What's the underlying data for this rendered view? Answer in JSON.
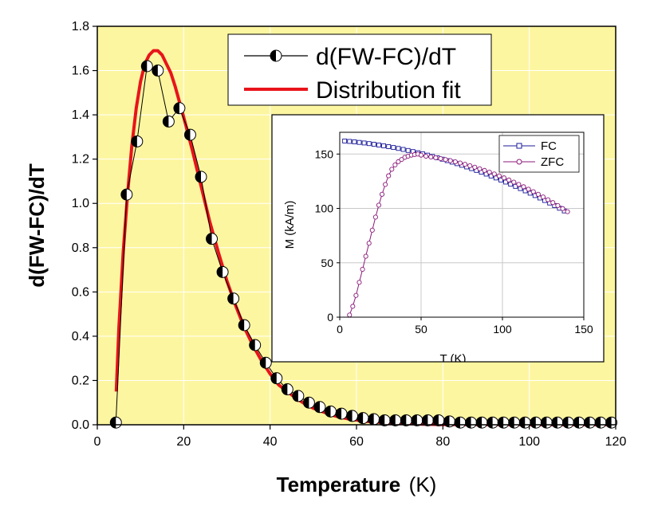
{
  "colors": {
    "plot_background": "#fdf6a0",
    "grid": "#ffffff",
    "fit_line": "#e8141b",
    "marker": "#000000",
    "fc_series": "#1b1b9a",
    "zfc_series": "#8a1a7a"
  },
  "chart_data": [
    {
      "type": "scatter",
      "ylabel": "d(FW-FC)/dT",
      "xlabel_bold": "Temperature",
      "xlabel_unit": "(K)",
      "xlim": [
        0,
        120
      ],
      "ylim": [
        0,
        1.8
      ],
      "xticks": [
        "0",
        "20",
        "40",
        "60",
        "80",
        "100",
        "120"
      ],
      "yticks": [
        "0.0",
        "0.2",
        "0.4",
        "0.6",
        "0.8",
        "1.0",
        "1.2",
        "1.4",
        "1.6",
        "1.8"
      ],
      "legend": {
        "placement": "top-center",
        "entries": [
          "d(FW-FC)/dT",
          "Distribution fit"
        ]
      },
      "series": [
        {
          "name": "d(FW-FC)/dT",
          "x": [
            4.3,
            6.8,
            9.2,
            11.5,
            14.0,
            16.5,
            19.0,
            21.5,
            24.0,
            26.5,
            29.0,
            31.5,
            34.0,
            36.5,
            39.0,
            41.5,
            44.0,
            46.5,
            49.0,
            51.5,
            54.0,
            56.5,
            59.0,
            61.5,
            64.0,
            66.5,
            69.0,
            71.5,
            74.0,
            76.5,
            79.0,
            81.5,
            84.0,
            86.5,
            89.0,
            91.5,
            94.0,
            96.5,
            99.0,
            101.5,
            104.0,
            106.5,
            109.0,
            111.5,
            114.0,
            116.5,
            119.0
          ],
          "y": [
            0.01,
            1.04,
            1.28,
            1.62,
            1.6,
            1.37,
            1.43,
            1.31,
            1.12,
            0.84,
            0.69,
            0.57,
            0.45,
            0.36,
            0.28,
            0.21,
            0.16,
            0.13,
            0.1,
            0.08,
            0.06,
            0.05,
            0.04,
            0.03,
            0.025,
            0.02,
            0.02,
            0.02,
            0.02,
            0.02,
            0.02,
            0.015,
            0.01,
            0.01,
            0.01,
            0.01,
            0.01,
            0.01,
            0.01,
            0.01,
            0.01,
            0.01,
            0.01,
            0.01,
            0.01,
            0.01,
            0.01
          ]
        },
        {
          "name": "Distribution fit",
          "x": [
            4.4,
            5,
            6,
            7,
            8,
            9,
            10,
            11,
            12,
            13,
            14,
            15,
            16,
            17,
            18,
            20,
            22,
            24,
            26,
            28,
            30,
            32,
            34,
            36,
            38,
            40,
            42,
            44,
            46,
            48,
            50,
            52,
            55,
            58,
            62,
            66,
            70,
            75,
            80,
            90,
            100,
            110,
            120
          ],
          "y": [
            0.15,
            0.44,
            0.78,
            1.04,
            1.26,
            1.43,
            1.55,
            1.63,
            1.67,
            1.69,
            1.69,
            1.67,
            1.63,
            1.59,
            1.53,
            1.39,
            1.24,
            1.08,
            0.92,
            0.78,
            0.65,
            0.54,
            0.44,
            0.36,
            0.29,
            0.23,
            0.18,
            0.15,
            0.12,
            0.095,
            0.075,
            0.06,
            0.04,
            0.027,
            0.016,
            0.01,
            0.006,
            0.003,
            0.001,
            0.0005,
            0.0002,
            0.0001,
            0
          ]
        }
      ]
    },
    {
      "type": "line",
      "xlabel": "T (K)",
      "ylabel": "M (kA/m)",
      "xlim": [
        0,
        150
      ],
      "ylim": [
        0,
        170
      ],
      "xticks": [
        "0",
        "50",
        "100",
        "150"
      ],
      "yticks": [
        "0",
        "50",
        "100",
        "150"
      ],
      "legend": {
        "placement": "top-right",
        "entries": [
          "FC",
          "ZFC"
        ]
      },
      "series": [
        {
          "name": "FC",
          "x": [
            3,
            140
          ],
          "y": [
            162,
            96
          ],
          "note": "FC follows an approximately parabolic decline from 162 kA/m at 3 K to about 96 kA/m at 140 K"
        },
        {
          "name": "ZFC",
          "x": [
            6,
            8,
            10,
            12,
            14,
            16,
            18,
            20,
            22,
            24,
            26,
            28,
            30,
            32,
            34,
            36,
            38,
            40,
            42,
            44,
            46,
            48,
            50
          ],
          "y": [
            2,
            10,
            20,
            32,
            44,
            56,
            68,
            80,
            92,
            103,
            113,
            122,
            130,
            136,
            140,
            143,
            145,
            147,
            148,
            149,
            149.5,
            150,
            149
          ]
        }
      ]
    }
  ]
}
